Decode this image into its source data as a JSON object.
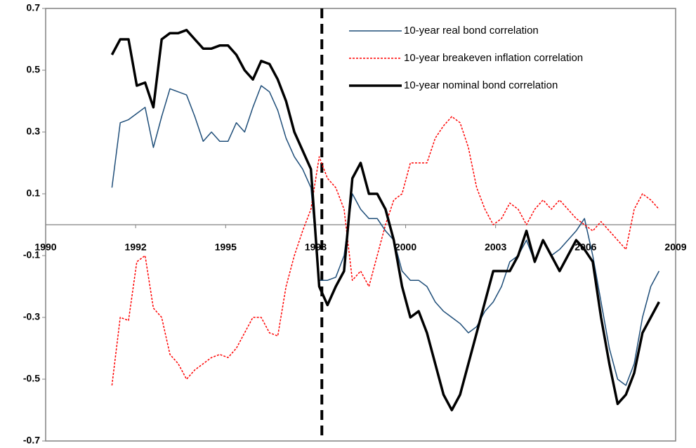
{
  "chart_data": {
    "type": "line",
    "x": [
      1992.0,
      1992.25,
      1992.5,
      1992.75,
      1993.0,
      1993.25,
      1993.5,
      1993.75,
      1994.0,
      1994.25,
      1994.5,
      1994.75,
      1995.0,
      1995.25,
      1995.5,
      1995.75,
      1996.0,
      1996.25,
      1996.5,
      1996.75,
      1997.0,
      1997.25,
      1997.5,
      1997.75,
      1998.0,
      1998.25,
      1998.5,
      1998.75,
      1999.0,
      1999.25,
      1999.5,
      1999.75,
      2000.0,
      2000.25,
      2000.5,
      2000.75,
      2001.0,
      2001.25,
      2001.5,
      2001.75,
      2002.0,
      2002.25,
      2002.5,
      2002.75,
      2003.0,
      2003.25,
      2003.5,
      2003.75,
      2004.0,
      2004.25,
      2004.5,
      2004.75,
      2005.0,
      2005.25,
      2005.5,
      2005.75,
      2006.0,
      2006.25,
      2006.5,
      2006.75,
      2007.0,
      2007.25,
      2007.5,
      2007.75,
      2008.0,
      2008.25,
      2008.5
    ],
    "series": [
      {
        "name": "10-year real bond correlation",
        "color": "#1f4e79",
        "width": 1.5,
        "dash": "none",
        "values": [
          0.12,
          0.33,
          0.34,
          0.36,
          0.38,
          0.25,
          0.35,
          0.44,
          0.43,
          0.42,
          0.35,
          0.27,
          0.3,
          0.27,
          0.27,
          0.33,
          0.3,
          0.38,
          0.45,
          0.43,
          0.37,
          0.28,
          0.22,
          0.18,
          0.12,
          -0.18,
          -0.18,
          -0.17,
          -0.1,
          0.1,
          0.05,
          0.02,
          0.02,
          -0.02,
          -0.05,
          -0.15,
          -0.18,
          -0.18,
          -0.2,
          -0.25,
          -0.28,
          -0.3,
          -0.32,
          -0.35,
          -0.33,
          -0.28,
          -0.25,
          -0.2,
          -0.12,
          -0.1,
          -0.05,
          -0.12,
          -0.05,
          -0.1,
          -0.08,
          -0.05,
          -0.02,
          0.02,
          -0.1,
          -0.25,
          -0.4,
          -0.5,
          -0.52,
          -0.45,
          -0.3,
          -0.2,
          -0.15
        ]
      },
      {
        "name": "10-year breakeven inflation correlation",
        "color": "#ff0000",
        "width": 1.5,
        "dash": "3 2",
        "values": [
          -0.52,
          -0.3,
          -0.31,
          -0.12,
          -0.1,
          -0.27,
          -0.3,
          -0.42,
          -0.45,
          -0.5,
          -0.47,
          -0.45,
          -0.43,
          -0.42,
          -0.43,
          -0.4,
          -0.35,
          -0.3,
          -0.3,
          -0.35,
          -0.36,
          -0.2,
          -0.1,
          -0.02,
          0.05,
          0.22,
          0.15,
          0.12,
          0.05,
          -0.18,
          -0.15,
          -0.2,
          -0.1,
          0,
          0.08,
          0.1,
          0.2,
          0.2,
          0.2,
          0.28,
          0.32,
          0.35,
          0.33,
          0.25,
          0.12,
          0.05,
          0,
          0.02,
          0.07,
          0.05,
          0,
          0.05,
          0.08,
          0.05,
          0.08,
          0.05,
          0.02,
          0,
          -0.02,
          0.01,
          -0.02,
          -0.05,
          -0.08,
          0.05,
          0.1,
          0.08,
          0.05
        ]
      },
      {
        "name": "10-year nominal bond correlation",
        "color": "#000000",
        "width": 3.5,
        "dash": "none",
        "values": [
          0.55,
          0.6,
          0.6,
          0.45,
          0.46,
          0.38,
          0.6,
          0.62,
          0.62,
          0.63,
          0.6,
          0.57,
          0.57,
          0.58,
          0.58,
          0.55,
          0.5,
          0.47,
          0.53,
          0.52,
          0.47,
          0.4,
          0.3,
          0.24,
          0.18,
          -0.2,
          -0.26,
          -0.2,
          -0.15,
          0.15,
          0.2,
          0.1,
          0.1,
          0.05,
          -0.05,
          -0.2,
          -0.3,
          -0.28,
          -0.35,
          -0.45,
          -0.55,
          -0.6,
          -0.55,
          -0.45,
          -0.35,
          -0.25,
          -0.15,
          -0.15,
          -0.15,
          -0.1,
          -0.02,
          -0.12,
          -0.05,
          -0.1,
          -0.15,
          -0.1,
          -0.05,
          -0.08,
          -0.12,
          -0.3,
          -0.45,
          -0.58,
          -0.55,
          -0.48,
          -0.35,
          -0.3,
          -0.25
        ]
      }
    ],
    "xlim": [
      1990,
      2009
    ],
    "xticks": [
      {
        "value": 1990,
        "label": "1990"
      },
      {
        "value": 1992.714,
        "label": "1992"
      },
      {
        "value": 1995.429,
        "label": "1995"
      },
      {
        "value": 1998.143,
        "label": "1998"
      },
      {
        "value": 2000.857,
        "label": "2000"
      },
      {
        "value": 2003.571,
        "label": "2003"
      },
      {
        "value": 2006.286,
        "label": "2006"
      },
      {
        "value": 2009,
        "label": "2009"
      }
    ],
    "ylim": [
      -0.7,
      0.7
    ],
    "yticks": [
      -0.7,
      -0.5,
      -0.3,
      -0.1,
      0.1,
      0.3,
      0.5,
      0.7
    ],
    "reference_line": {
      "x": 1998.33,
      "color": "#000000",
      "dash": "14 8"
    },
    "legend": "upper right",
    "grid": false
  }
}
